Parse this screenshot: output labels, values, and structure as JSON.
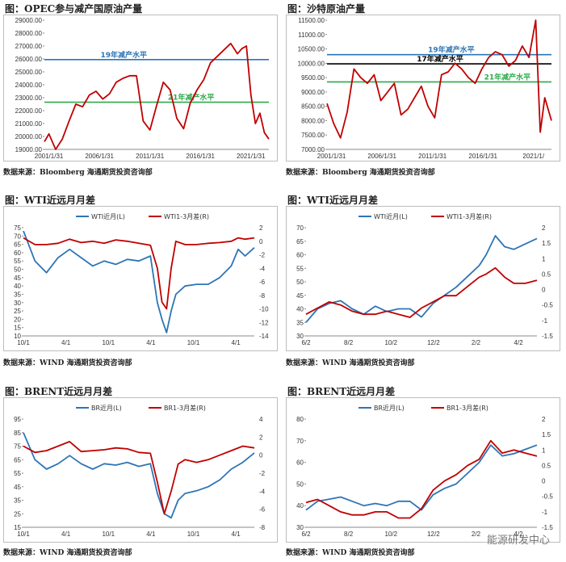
{
  "source_bloomberg": "数据来源：Bloomberg 海通期货投资咨询部",
  "source_wind": "数据来源：WIND 海通期货投资咨询部",
  "watermark": "能源研发中心",
  "colors": {
    "blue": "#2E75B6",
    "red": "#C00000",
    "green": "#2EAA4B",
    "black": "#000000"
  },
  "chart_data": [
    {
      "id": "opec",
      "type": "line",
      "title": "图：OPEC参与减产国原油产量",
      "x_ticks": [
        "2001/1/31",
        "2006/1/31",
        "2011/1/31",
        "2016/1/31",
        "2021/1/31"
      ],
      "x_label": "2021/1/",
      "ylim": [
        19000,
        29000
      ],
      "y_ticks": [
        "29000.00",
        "28000.00",
        "27000.00",
        "26000.00",
        "25000.00",
        "24000.00",
        "23000.00",
        "22000.00",
        "21000.00",
        "20000.00",
        "19000.00"
      ],
      "hlines": [
        {
          "label": "19年减产水平",
          "value": 25950,
          "color": "#2E75B6"
        },
        {
          "label": "21年减产水平",
          "value": 22650,
          "color": "#2EAA4B"
        }
      ],
      "series": [
        {
          "color": "#C00000",
          "x": [
            0,
            0.02,
            0.05,
            0.08,
            0.11,
            0.14,
            0.17,
            0.2,
            0.23,
            0.26,
            0.29,
            0.32,
            0.35,
            0.38,
            0.41,
            0.44,
            0.47,
            0.5,
            0.53,
            0.56,
            0.59,
            0.62,
            0.65,
            0.68,
            0.71,
            0.74,
            0.77,
            0.8,
            0.83,
            0.86,
            0.88,
            0.9,
            0.92,
            0.94,
            0.96,
            0.98,
            1.0
          ],
          "y": [
            19600,
            20200,
            19000,
            19800,
            21200,
            22500,
            22300,
            23200,
            23500,
            22900,
            23300,
            24200,
            24500,
            24700,
            24700,
            21200,
            20500,
            22400,
            24200,
            23600,
            21400,
            20600,
            22600,
            23600,
            24400,
            25700,
            26200,
            26700,
            27200,
            26400,
            26800,
            27000,
            23200,
            21000,
            21800,
            20300,
            19800
          ]
        }
      ]
    },
    {
      "id": "saudi",
      "type": "line",
      "title": "图：沙特原油产量",
      "x_ticks": [
        "2001/1/31",
        "2006/1/31",
        "2011/1/31",
        "2016/1/31",
        "2021/1/"
      ],
      "ylim": [
        7000,
        11500
      ],
      "y_ticks": [
        "11500.00",
        "11000.00",
        "10500.00",
        "10000.00",
        "9500.00",
        "9000.00",
        "8500.00",
        "8000.00",
        "7500.00",
        "7000.00"
      ],
      "hlines": [
        {
          "label": "19年减产水平",
          "value": 10300,
          "color": "#2E75B6"
        },
        {
          "label": "17年减产水平",
          "value": 9980,
          "color": "#000000"
        },
        {
          "label": "21年减产水平",
          "value": 9350,
          "color": "#2EAA4B"
        }
      ],
      "series": [
        {
          "color": "#C00000",
          "x": [
            0,
            0.03,
            0.06,
            0.09,
            0.12,
            0.15,
            0.18,
            0.21,
            0.24,
            0.27,
            0.3,
            0.33,
            0.36,
            0.39,
            0.42,
            0.45,
            0.48,
            0.51,
            0.54,
            0.57,
            0.6,
            0.63,
            0.66,
            0.69,
            0.72,
            0.75,
            0.78,
            0.81,
            0.84,
            0.87,
            0.9,
            0.93,
            0.95,
            0.97,
            1.0
          ],
          "y": [
            8600,
            7900,
            7400,
            8300,
            9800,
            9500,
            9300,
            9600,
            8700,
            9000,
            9300,
            8200,
            8400,
            8800,
            9200,
            8500,
            8100,
            9600,
            9700,
            10000,
            9800,
            9500,
            9300,
            9800,
            10200,
            10400,
            10300,
            9900,
            10100,
            10600,
            10200,
            11500,
            7600,
            8800,
            8000
          ]
        }
      ]
    },
    {
      "id": "wti",
      "type": "line",
      "title": "图：WTI近远月月差",
      "legend": [
        "WTI近月(L)",
        "WTI1-3月差(R)"
      ],
      "x_ticks": [
        "10/1",
        "4/1",
        "10/1",
        "4/1",
        "10/1",
        "4/1"
      ],
      "ylim_left": [
        10,
        75
      ],
      "ylim_right": [
        -14,
        2
      ],
      "y_ticks_left": [
        "75",
        "70",
        "65",
        "60",
        "55",
        "50",
        "45",
        "40",
        "35",
        "30",
        "25",
        "20",
        "15",
        "10"
      ],
      "y_ticks_right": [
        "2",
        "0",
        "-2",
        "-4",
        "-6",
        "-8",
        "-10",
        "-12",
        "-14"
      ],
      "series": [
        {
          "name": "WTI近月(L)",
          "axis": "left",
          "color": "#2E75B6",
          "x": [
            0,
            0.05,
            0.1,
            0.15,
            0.2,
            0.25,
            0.3,
            0.35,
            0.4,
            0.45,
            0.5,
            0.55,
            0.58,
            0.6,
            0.62,
            0.64,
            0.66,
            0.7,
            0.75,
            0.8,
            0.85,
            0.9,
            0.93,
            0.96,
            1.0
          ],
          "y": [
            73,
            55,
            48,
            57,
            62,
            57,
            52,
            55,
            53,
            56,
            55,
            58,
            30,
            20,
            12,
            25,
            35,
            40,
            41,
            41,
            45,
            52,
            62,
            58,
            63
          ]
        },
        {
          "name": "WTI1-3月差(R)",
          "axis": "right",
          "color": "#C00000",
          "x": [
            0,
            0.05,
            0.1,
            0.15,
            0.2,
            0.25,
            0.3,
            0.35,
            0.4,
            0.45,
            0.5,
            0.55,
            0.58,
            0.6,
            0.62,
            0.64,
            0.66,
            0.7,
            0.75,
            0.8,
            0.85,
            0.9,
            0.93,
            0.96,
            1.0
          ],
          "y": [
            0.5,
            -0.5,
            -0.5,
            -0.3,
            0.3,
            -0.2,
            0,
            -0.3,
            0.2,
            0,
            -0.3,
            -0.6,
            -4,
            -9,
            -10,
            -4,
            0,
            -0.5,
            -0.5,
            -0.3,
            -0.2,
            0,
            0.5,
            0.3,
            0.5
          ]
        }
      ]
    },
    {
      "id": "wti2",
      "type": "line",
      "title": "图：WTI近远月月差",
      "legend": [
        "WTI近月(L)",
        "WTI1-3月差(R)"
      ],
      "x_ticks": [
        "6/2",
        "8/2",
        "10/2",
        "12/2",
        "2/2",
        "4/2"
      ],
      "ylim_left": [
        30,
        70
      ],
      "ylim_right": [
        -1.5,
        2
      ],
      "y_ticks_left": [
        "70",
        "65",
        "60",
        "55",
        "50",
        "45",
        "40",
        "35",
        "30"
      ],
      "y_ticks_right": [
        "2",
        "1.5",
        "1",
        "0.5",
        "0",
        "-0.5",
        "-1",
        "-1.5"
      ],
      "series": [
        {
          "name": "WTI近月(L)",
          "axis": "left",
          "color": "#2E75B6",
          "x": [
            0,
            0.05,
            0.1,
            0.15,
            0.2,
            0.25,
            0.3,
            0.35,
            0.4,
            0.45,
            0.5,
            0.55,
            0.6,
            0.65,
            0.7,
            0.75,
            0.78,
            0.82,
            0.86,
            0.9,
            0.95,
            1.0
          ],
          "y": [
            35,
            40,
            42,
            43,
            40,
            38,
            41,
            39,
            40,
            40,
            37,
            42,
            45,
            48,
            52,
            56,
            60,
            67,
            63,
            62,
            64,
            66
          ]
        },
        {
          "name": "WTI1-3月差(R)",
          "axis": "right",
          "color": "#C00000",
          "x": [
            0,
            0.05,
            0.1,
            0.15,
            0.2,
            0.25,
            0.3,
            0.35,
            0.4,
            0.45,
            0.5,
            0.55,
            0.6,
            0.65,
            0.7,
            0.75,
            0.78,
            0.82,
            0.86,
            0.9,
            0.95,
            1.0
          ],
          "y": [
            -0.8,
            -0.6,
            -0.4,
            -0.5,
            -0.7,
            -0.8,
            -0.8,
            -0.7,
            -0.8,
            -0.9,
            -0.6,
            -0.4,
            -0.2,
            -0.2,
            0.1,
            0.4,
            0.5,
            0.7,
            0.4,
            0.2,
            0.2,
            0.3
          ]
        }
      ]
    },
    {
      "id": "brent",
      "type": "line",
      "title": "图：BRENT近远月月差",
      "legend": [
        "BR近月(L)",
        "BR1-3月差(R)"
      ],
      "x_ticks": [
        "10/1",
        "4/1",
        "10/1",
        "4/1",
        "10/1",
        "4/1"
      ],
      "ylim_left": [
        15,
        95
      ],
      "ylim_right": [
        -8,
        4
      ],
      "y_ticks_left": [
        "95",
        "85",
        "75",
        "65",
        "55",
        "45",
        "35",
        "25",
        "15"
      ],
      "y_ticks_right": [
        "4",
        "2",
        "0",
        "-2",
        "-4",
        "-6",
        "-8"
      ],
      "series": [
        {
          "name": "BR近月(L)",
          "axis": "left",
          "color": "#2E75B6",
          "x": [
            0,
            0.05,
            0.1,
            0.15,
            0.2,
            0.25,
            0.3,
            0.35,
            0.4,
            0.45,
            0.5,
            0.55,
            0.58,
            0.61,
            0.64,
            0.67,
            0.7,
            0.75,
            0.8,
            0.85,
            0.9,
            0.95,
            1.0
          ],
          "y": [
            85,
            65,
            58,
            62,
            68,
            62,
            58,
            62,
            61,
            63,
            60,
            62,
            40,
            25,
            22,
            35,
            40,
            42,
            45,
            50,
            58,
            63,
            70
          ]
        },
        {
          "name": "BR1-3月差(R)",
          "axis": "right",
          "color": "#C00000",
          "x": [
            0,
            0.05,
            0.1,
            0.15,
            0.2,
            0.25,
            0.3,
            0.35,
            0.4,
            0.45,
            0.5,
            0.55,
            0.58,
            0.61,
            0.64,
            0.67,
            0.7,
            0.75,
            0.8,
            0.85,
            0.9,
            0.95,
            1.0
          ],
          "y": [
            1.0,
            0.3,
            0.5,
            1.0,
            1.5,
            0.4,
            0.5,
            0.6,
            0.8,
            0.7,
            0.3,
            0.2,
            -3,
            -6.5,
            -4,
            -1,
            -0.5,
            -0.8,
            -0.5,
            0,
            0.5,
            1.0,
            0.8
          ]
        }
      ]
    },
    {
      "id": "brent2",
      "type": "line",
      "title": "图：BRENT近远月月差",
      "legend": [
        "BR近月(L)",
        "BR1-3月差(R)"
      ],
      "x_ticks": [
        "6/2",
        "8/2",
        "10/2",
        "12/2",
        "2/2",
        "4/2"
      ],
      "ylim_left": [
        30,
        80
      ],
      "ylim_right": [
        -1.5,
        2
      ],
      "y_ticks_left": [
        "80",
        "70",
        "60",
        "50",
        "40",
        "30"
      ],
      "y_ticks_right": [
        "2",
        "1.5",
        "1",
        "0.5",
        "0",
        "-0.5",
        "-1",
        "-1.5"
      ],
      "series": [
        {
          "name": "BR近月(L)",
          "axis": "left",
          "color": "#2E75B6",
          "x": [
            0,
            0.05,
            0.1,
            0.15,
            0.2,
            0.25,
            0.3,
            0.35,
            0.4,
            0.45,
            0.5,
            0.55,
            0.6,
            0.65,
            0.7,
            0.75,
            0.8,
            0.85,
            0.9,
            0.95,
            1.0
          ],
          "y": [
            38,
            42,
            43,
            44,
            42,
            40,
            41,
            40,
            42,
            42,
            38,
            45,
            48,
            50,
            55,
            60,
            68,
            63,
            64,
            66,
            68
          ]
        },
        {
          "name": "BR1-3月差(R)",
          "axis": "right",
          "color": "#C00000",
          "x": [
            0,
            0.05,
            0.1,
            0.15,
            0.2,
            0.25,
            0.3,
            0.35,
            0.4,
            0.45,
            0.5,
            0.55,
            0.6,
            0.65,
            0.7,
            0.75,
            0.8,
            0.85,
            0.9,
            0.95,
            1.0
          ],
          "y": [
            -0.7,
            -0.6,
            -0.8,
            -1.0,
            -1.1,
            -1.1,
            -1.0,
            -1.0,
            -1.2,
            -1.2,
            -0.9,
            -0.3,
            0,
            0.2,
            0.5,
            0.7,
            1.3,
            0.9,
            1.0,
            0.9,
            0.8
          ]
        }
      ]
    }
  ]
}
